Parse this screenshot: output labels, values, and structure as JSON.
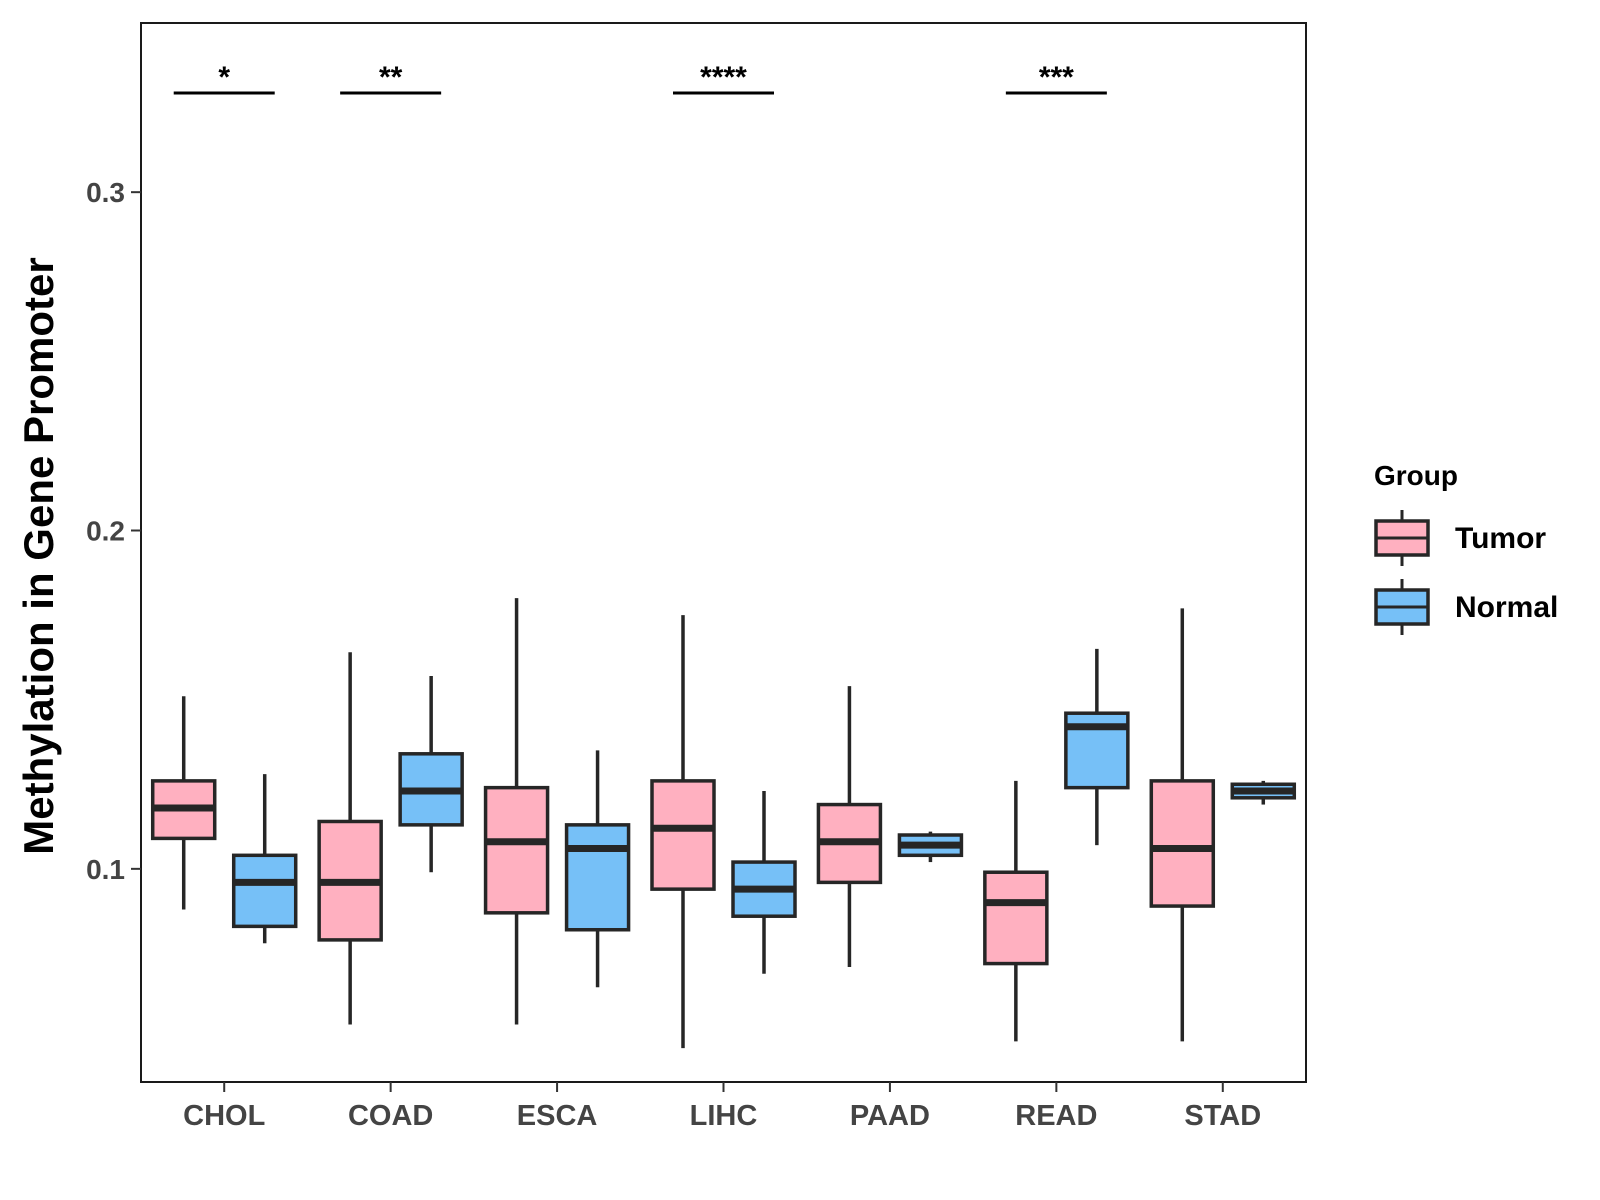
{
  "chart_data": {
    "type": "boxplot",
    "title": "",
    "xlabel": "",
    "ylabel": "Methylation in Gene Promoter",
    "ylim": [
      0.037,
      0.35
    ],
    "yticks": [
      0.1,
      0.2,
      0.3
    ],
    "ytick_labels": [
      "0.1",
      "0.2",
      "0.3"
    ],
    "categories": [
      "CHOL",
      "COAD",
      "ESCA",
      "LIHC",
      "PAAD",
      "READ",
      "STAD"
    ],
    "legend": {
      "title": "Group",
      "position": "right",
      "entries": [
        {
          "name": "Tumor",
          "color": "#FFB0C0"
        },
        {
          "name": "Normal",
          "color": "#76C0F7"
        }
      ]
    },
    "series": [
      {
        "name": "Tumor",
        "color": "#FFB0C0",
        "boxes": [
          {
            "min": 0.088,
            "q1": 0.109,
            "median": 0.118,
            "q3": 0.126,
            "max": 0.151
          },
          {
            "min": 0.054,
            "q1": 0.079,
            "median": 0.096,
            "q3": 0.114,
            "max": 0.164
          },
          {
            "min": 0.054,
            "q1": 0.087,
            "median": 0.108,
            "q3": 0.124,
            "max": 0.18
          },
          {
            "min": 0.047,
            "q1": 0.094,
            "median": 0.112,
            "q3": 0.126,
            "max": 0.175
          },
          {
            "min": 0.071,
            "q1": 0.096,
            "median": 0.108,
            "q3": 0.119,
            "max": 0.154
          },
          {
            "min": 0.049,
            "q1": 0.072,
            "median": 0.09,
            "q3": 0.099,
            "max": 0.126
          },
          {
            "min": 0.049,
            "q1": 0.089,
            "median": 0.106,
            "q3": 0.126,
            "max": 0.177
          }
        ]
      },
      {
        "name": "Normal",
        "color": "#76C0F7",
        "boxes": [
          {
            "min": 0.078,
            "q1": 0.083,
            "median": 0.096,
            "q3": 0.104,
            "max": 0.128
          },
          {
            "min": 0.099,
            "q1": 0.113,
            "median": 0.123,
            "q3": 0.134,
            "max": 0.157
          },
          {
            "min": 0.065,
            "q1": 0.082,
            "median": 0.106,
            "q3": 0.113,
            "max": 0.135
          },
          {
            "min": 0.069,
            "q1": 0.086,
            "median": 0.094,
            "q3": 0.102,
            "max": 0.123
          },
          {
            "min": 0.102,
            "q1": 0.104,
            "median": 0.107,
            "q3": 0.11,
            "max": 0.111
          },
          {
            "min": 0.107,
            "q1": 0.124,
            "median": 0.142,
            "q3": 0.146,
            "max": 0.165
          },
          {
            "min": 0.119,
            "q1": 0.121,
            "median": 0.123,
            "q3": 0.125,
            "max": 0.126
          }
        ]
      }
    ],
    "annotations": [
      {
        "category": "CHOL",
        "label": "*"
      },
      {
        "category": "COAD",
        "label": "**"
      },
      {
        "category": "LIHC",
        "label": "****"
      },
      {
        "category": "READ",
        "label": "***"
      }
    ]
  }
}
